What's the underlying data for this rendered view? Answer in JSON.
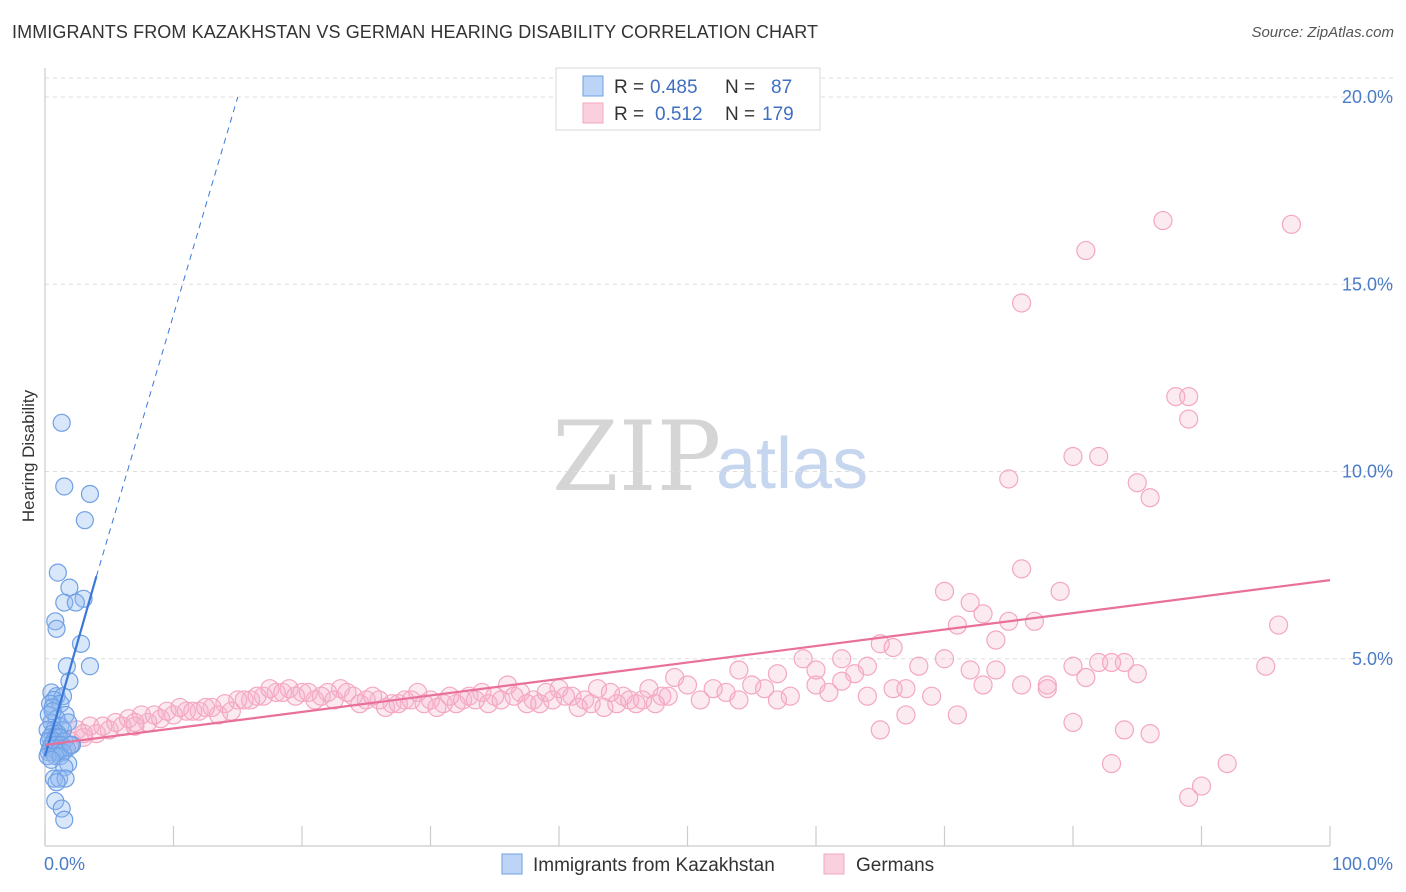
{
  "title": "IMMIGRANTS FROM KAZAKHSTAN VS GERMAN HEARING DISABILITY CORRELATION CHART",
  "source": "Source: ZipAtlas.com",
  "watermark": {
    "zip": "ZIP",
    "atlas": "atlas"
  },
  "legend_top": {
    "rows": [
      {
        "r_label": "R =",
        "r_value": "0.485",
        "n_label": "N =",
        "n_value": "87",
        "color": "#8ab4ea"
      },
      {
        "r_label": "R =",
        "r_value": "0.512",
        "n_label": "N =",
        "n_value": "179",
        "color": "#f4a7c0"
      }
    ]
  },
  "chart_data": {
    "type": "scatter",
    "title": "IMMIGRANTS FROM KAZAKHSTAN VS GERMAN HEARING DISABILITY CORRELATION CHART",
    "xlabel": "",
    "ylabel": "Hearing Disability",
    "xlim": [
      0,
      100
    ],
    "ylim": [
      0,
      20.5
    ],
    "x_tick_labels": [
      "0.0%",
      "100.0%"
    ],
    "y_ticks": [
      5,
      10,
      15,
      20
    ],
    "y_tick_labels": [
      "5.0%",
      "10.0%",
      "15.0%",
      "20.0%"
    ],
    "grid": "horizontal dashed",
    "legend_placement": "bottom",
    "series": [
      {
        "name": "Immigrants from Kazakhstan",
        "color": "#6fa0e4",
        "line_color": "#3b78d8",
        "trend": {
          "x0": 0,
          "y0": 2.4,
          "x1": 4,
          "y1": 7.2,
          "dashed_to": [
            15,
            20
          ]
        },
        "points": [
          [
            1.3,
            11.3
          ],
          [
            1.5,
            9.6
          ],
          [
            3.5,
            9.4
          ],
          [
            3.1,
            8.7
          ],
          [
            1.0,
            7.3
          ],
          [
            1.9,
            6.9
          ],
          [
            3.0,
            6.6
          ],
          [
            1.5,
            6.5
          ],
          [
            2.4,
            6.5
          ],
          [
            0.8,
            6.0
          ],
          [
            0.9,
            5.8
          ],
          [
            2.8,
            5.4
          ],
          [
            1.7,
            4.8
          ],
          [
            3.5,
            4.8
          ],
          [
            1.9,
            4.4
          ],
          [
            0.5,
            4.1
          ],
          [
            0.9,
            4.0
          ],
          [
            1.4,
            4.0
          ],
          [
            0.7,
            3.9
          ],
          [
            0.4,
            3.8
          ],
          [
            1.2,
            3.8
          ],
          [
            0.6,
            3.7
          ],
          [
            1.6,
            3.5
          ],
          [
            0.3,
            3.5
          ],
          [
            0.9,
            3.4
          ],
          [
            0.5,
            3.3
          ],
          [
            1.2,
            3.2
          ],
          [
            0.7,
            3.1
          ],
          [
            1.4,
            3.1
          ],
          [
            0.2,
            3.1
          ],
          [
            0.6,
            3.0
          ],
          [
            1.0,
            3.0
          ],
          [
            0.4,
            2.9
          ],
          [
            0.8,
            2.9
          ],
          [
            1.1,
            2.9
          ],
          [
            0.3,
            2.8
          ],
          [
            0.7,
            2.8
          ],
          [
            1.5,
            2.8
          ],
          [
            0.5,
            2.7
          ],
          [
            0.9,
            2.7
          ],
          [
            1.3,
            2.7
          ],
          [
            2.1,
            2.7
          ],
          [
            0.4,
            2.6
          ],
          [
            0.7,
            2.6
          ],
          [
            1.1,
            2.6
          ],
          [
            1.7,
            2.6
          ],
          [
            0.3,
            2.5
          ],
          [
            0.6,
            2.5
          ],
          [
            1.0,
            2.5
          ],
          [
            1.4,
            2.5
          ],
          [
            0.8,
            2.4
          ],
          [
            0.2,
            2.4
          ],
          [
            1.2,
            2.4
          ],
          [
            0.5,
            2.3
          ],
          [
            1.8,
            2.2
          ],
          [
            1.5,
            2.1
          ],
          [
            0.7,
            1.8
          ],
          [
            1.1,
            1.8
          ],
          [
            1.6,
            1.8
          ],
          [
            0.9,
            1.7
          ],
          [
            0.8,
            1.2
          ],
          [
            1.3,
            1.0
          ],
          [
            1.5,
            0.7
          ],
          [
            2.0,
            2.7
          ],
          [
            0.6,
            3.6
          ],
          [
            1.8,
            3.3
          ]
        ]
      },
      {
        "name": "Germans",
        "color": "#f4a7c0",
        "line_color": "#e8709b",
        "trend": {
          "x0": 0,
          "y0": 2.7,
          "x1": 100,
          "y1": 7.1
        },
        "points": [
          [
            87,
            16.7
          ],
          [
            97,
            16.6
          ],
          [
            81,
            15.9
          ],
          [
            76,
            14.5
          ],
          [
            88,
            12.0
          ],
          [
            89,
            12.0
          ],
          [
            89,
            11.4
          ],
          [
            80,
            10.4
          ],
          [
            82,
            10.4
          ],
          [
            75,
            9.8
          ],
          [
            85,
            9.7
          ],
          [
            86,
            9.3
          ],
          [
            76,
            7.4
          ],
          [
            70,
            6.8
          ],
          [
            79,
            6.8
          ],
          [
            72,
            6.5
          ],
          [
            73,
            6.2
          ],
          [
            75,
            6.0
          ],
          [
            77,
            6.0
          ],
          [
            71,
            5.9
          ],
          [
            96,
            5.9
          ],
          [
            74,
            5.5
          ],
          [
            65,
            5.4
          ],
          [
            66,
            5.3
          ],
          [
            59,
            5.0
          ],
          [
            62,
            5.0
          ],
          [
            70,
            5.0
          ],
          [
            82,
            4.9
          ],
          [
            64,
            4.8
          ],
          [
            68,
            4.8
          ],
          [
            74,
            4.7
          ],
          [
            80,
            4.8
          ],
          [
            54,
            4.7
          ],
          [
            60,
            4.7
          ],
          [
            63,
            4.6
          ],
          [
            57,
            4.6
          ],
          [
            72,
            4.7
          ],
          [
            95,
            4.8
          ],
          [
            81,
            4.5
          ],
          [
            62,
            4.4
          ],
          [
            55,
            4.3
          ],
          [
            56,
            4.2
          ],
          [
            60,
            4.3
          ],
          [
            66,
            4.2
          ],
          [
            67,
            4.2
          ],
          [
            52,
            4.2
          ],
          [
            53,
            4.1
          ],
          [
            61,
            4.1
          ],
          [
            64,
            4.0
          ],
          [
            58,
            4.0
          ],
          [
            69,
            4.0
          ],
          [
            73,
            4.3
          ],
          [
            76,
            4.3
          ],
          [
            78,
            4.3
          ],
          [
            49,
            4.5
          ],
          [
            50,
            4.3
          ],
          [
            47,
            4.2
          ],
          [
            45,
            4.0
          ],
          [
            44,
            4.1
          ],
          [
            43,
            4.2
          ],
          [
            48,
            4.0
          ],
          [
            51,
            3.9
          ],
          [
            54,
            3.9
          ],
          [
            57,
            3.9
          ],
          [
            46,
            3.8
          ],
          [
            40,
            4.2
          ],
          [
            41,
            4.0
          ],
          [
            39,
            4.1
          ],
          [
            42,
            3.9
          ],
          [
            37,
            4.1
          ],
          [
            36,
            4.3
          ],
          [
            38,
            3.9
          ],
          [
            35,
            4.0
          ],
          [
            34,
            4.1
          ],
          [
            33,
            4.0
          ],
          [
            32,
            3.8
          ],
          [
            31,
            3.8
          ],
          [
            30,
            3.9
          ],
          [
            29,
            4.1
          ],
          [
            28,
            3.9
          ],
          [
            27,
            3.8
          ],
          [
            26,
            3.9
          ],
          [
            25,
            3.9
          ],
          [
            24,
            4.0
          ],
          [
            23,
            4.2
          ],
          [
            22,
            4.1
          ],
          [
            21,
            3.9
          ],
          [
            20,
            4.1
          ],
          [
            19,
            4.2
          ],
          [
            18,
            4.1
          ],
          [
            17,
            4.0
          ],
          [
            16,
            3.9
          ],
          [
            15,
            3.9
          ],
          [
            14,
            3.8
          ],
          [
            13,
            3.7
          ],
          [
            12,
            3.6
          ],
          [
            11,
            3.6
          ],
          [
            10,
            3.5
          ],
          [
            9,
            3.4
          ],
          [
            8,
            3.3
          ],
          [
            7,
            3.2
          ],
          [
            6,
            3.2
          ],
          [
            5,
            3.1
          ],
          [
            4,
            3.0
          ],
          [
            3,
            2.9
          ],
          [
            2,
            2.8
          ],
          [
            1,
            2.7
          ],
          [
            2.5,
            3.1
          ],
          [
            3.5,
            3.2
          ],
          [
            4.5,
            3.2
          ],
          [
            5.5,
            3.3
          ],
          [
            6.5,
            3.4
          ],
          [
            7.5,
            3.5
          ],
          [
            8.5,
            3.5
          ],
          [
            9.5,
            3.6
          ],
          [
            10.5,
            3.7
          ],
          [
            11.5,
            3.6
          ],
          [
            12.5,
            3.7
          ],
          [
            13.5,
            3.5
          ],
          [
            14.5,
            3.6
          ],
          [
            15.5,
            3.9
          ],
          [
            16.5,
            4.0
          ],
          [
            17.5,
            4.2
          ],
          [
            18.5,
            4.1
          ],
          [
            19.5,
            4.0
          ],
          [
            20.5,
            4.1
          ],
          [
            21.5,
            4.0
          ],
          [
            22.5,
            3.9
          ],
          [
            23.5,
            4.1
          ],
          [
            24.5,
            3.8
          ],
          [
            25.5,
            4.0
          ],
          [
            26.5,
            3.7
          ],
          [
            27.5,
            3.8
          ],
          [
            28.5,
            3.9
          ],
          [
            29.5,
            3.8
          ],
          [
            30.5,
            3.7
          ],
          [
            31.5,
            4.0
          ],
          [
            32.5,
            3.9
          ],
          [
            33.5,
            3.9
          ],
          [
            34.5,
            3.8
          ],
          [
            35.5,
            3.9
          ],
          [
            36.5,
            4.0
          ],
          [
            37.5,
            3.8
          ],
          [
            38.5,
            3.8
          ],
          [
            39.5,
            3.9
          ],
          [
            40.5,
            4.0
          ],
          [
            41.5,
            3.7
          ],
          [
            42.5,
            3.8
          ],
          [
            43.5,
            3.7
          ],
          [
            44.5,
            3.8
          ],
          [
            45.5,
            3.9
          ],
          [
            46.5,
            3.9
          ],
          [
            47.5,
            3.8
          ],
          [
            48.5,
            4.0
          ],
          [
            1.5,
            2.6
          ],
          [
            3,
            3.0
          ],
          [
            7,
            3.3
          ],
          [
            65,
            3.1
          ],
          [
            67,
            3.5
          ],
          [
            71,
            3.5
          ],
          [
            80,
            3.3
          ],
          [
            84,
            3.1
          ],
          [
            86,
            3.0
          ],
          [
            83,
            2.2
          ],
          [
            92,
            2.2
          ],
          [
            90,
            1.6
          ],
          [
            89,
            1.3
          ],
          [
            78,
            4.2
          ],
          [
            84,
            4.9
          ],
          [
            85,
            4.6
          ],
          [
            83,
            4.9
          ]
        ]
      }
    ]
  },
  "bottom_legend": {
    "items": [
      {
        "label": "Immigrants from Kazakhstan",
        "color": "#6fa0e4"
      },
      {
        "label": "Germans",
        "color": "#f4a7c0"
      }
    ]
  }
}
